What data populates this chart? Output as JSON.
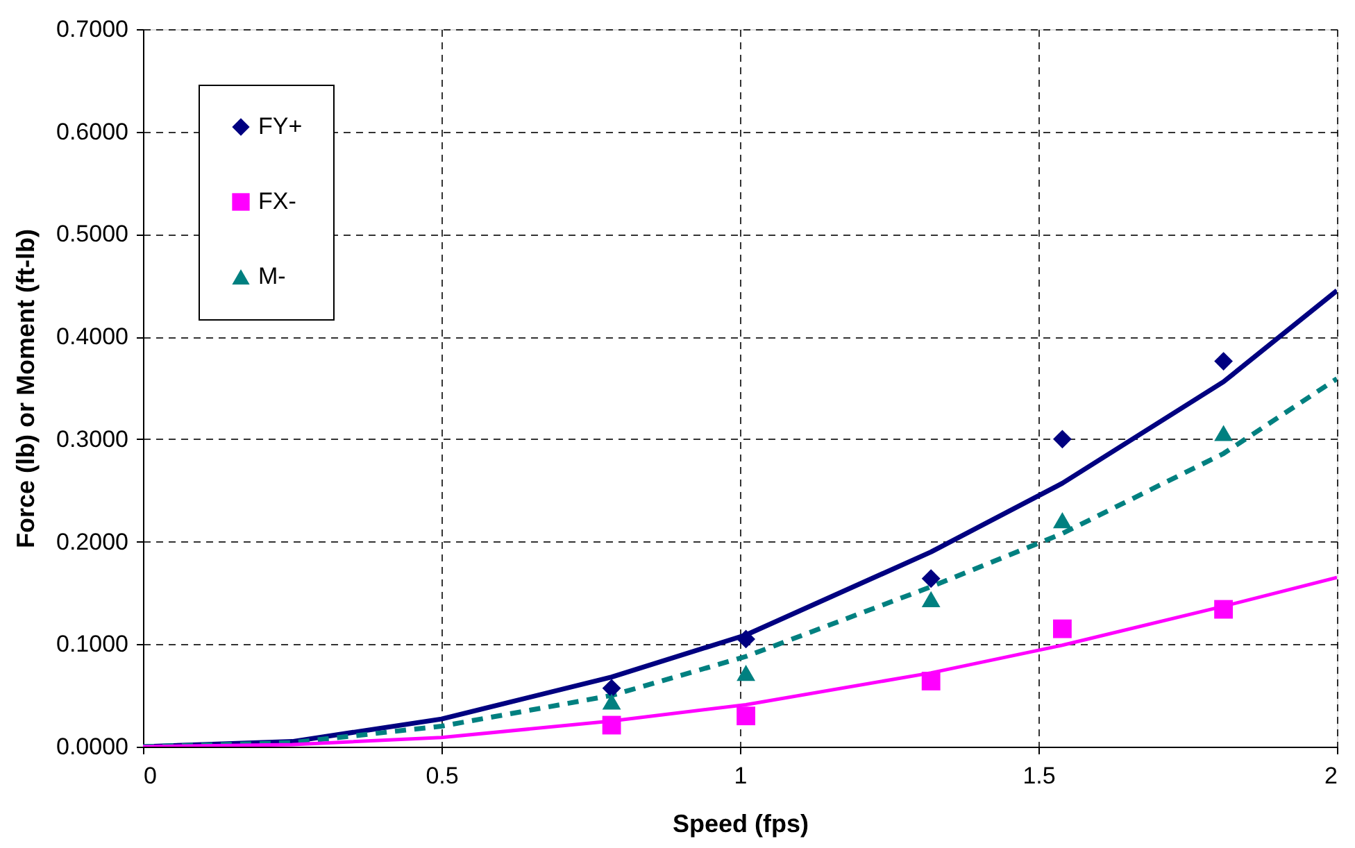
{
  "chart_data": {
    "type": "scatter",
    "xlabel": "Speed (fps)",
    "ylabel": "Force (lb) or Moment (ft-lb)",
    "xlim": [
      0,
      2
    ],
    "xticks": [
      0,
      0.5,
      1,
      1.5,
      2
    ],
    "ylim": [
      0,
      0.7
    ],
    "yticks": [
      {
        "value": 0,
        "label": "0.0000"
      },
      {
        "value": 0.1,
        "label": "0.1000"
      },
      {
        "value": 0.2,
        "label": "0.2000"
      },
      {
        "value": 0.3,
        "label": "0.3000"
      },
      {
        "value": 0.4,
        "label": "0.4000"
      },
      {
        "value": 0.5,
        "label": "0.5000"
      },
      {
        "value": 0.6,
        "label": "0.6000"
      },
      {
        "value": 0.7,
        "label": "0.7000"
      }
    ],
    "grid": true,
    "legend": "top left",
    "series": [
      {
        "name": "FY+",
        "marker": "diamond",
        "color": "#000080",
        "x": [
          0.785,
          1.01,
          1.32,
          1.54,
          1.81
        ],
        "values": [
          0.057,
          0.105,
          0.164,
          0.3,
          0.376
        ]
      },
      {
        "name": "FX-",
        "marker": "square",
        "color": "#ff00ff",
        "x": [
          0.785,
          1.01,
          1.32,
          1.54,
          1.81
        ],
        "values": [
          0.021,
          0.03,
          0.064,
          0.115,
          0.134
        ]
      },
      {
        "name": "M-",
        "marker": "triangle",
        "color": "#008080",
        "x": [
          0.785,
          1.01,
          1.32,
          1.54,
          1.81
        ],
        "values": [
          0.044,
          0.072,
          0.144,
          0.221,
          0.306
        ]
      },
      {
        "type": "line",
        "line_style": "solid",
        "color": "#000080",
        "x": [
          0,
          0.25,
          0.5,
          0.785,
          1.01,
          1.32,
          1.54,
          1.81,
          2.0
        ],
        "values": [
          0,
          0.005,
          0.027,
          0.068,
          0.109,
          0.19,
          0.257,
          0.356,
          0.445
        ]
      },
      {
        "type": "line",
        "line_style": "dashed",
        "color": "#008080",
        "x": [
          0,
          0.25,
          0.5,
          0.785,
          1.01,
          1.32,
          1.54,
          1.81,
          2.0
        ],
        "values": [
          0,
          0.004,
          0.02,
          0.05,
          0.088,
          0.156,
          0.208,
          0.286,
          0.359
        ]
      },
      {
        "type": "line",
        "line_style": "solid",
        "color": "#ff00ff",
        "x": [
          0,
          0.25,
          0.5,
          0.785,
          1.01,
          1.32,
          1.54,
          1.81,
          2.0
        ],
        "values": [
          0,
          0.002,
          0.009,
          0.025,
          0.041,
          0.072,
          0.099,
          0.137,
          0.165
        ]
      }
    ]
  }
}
